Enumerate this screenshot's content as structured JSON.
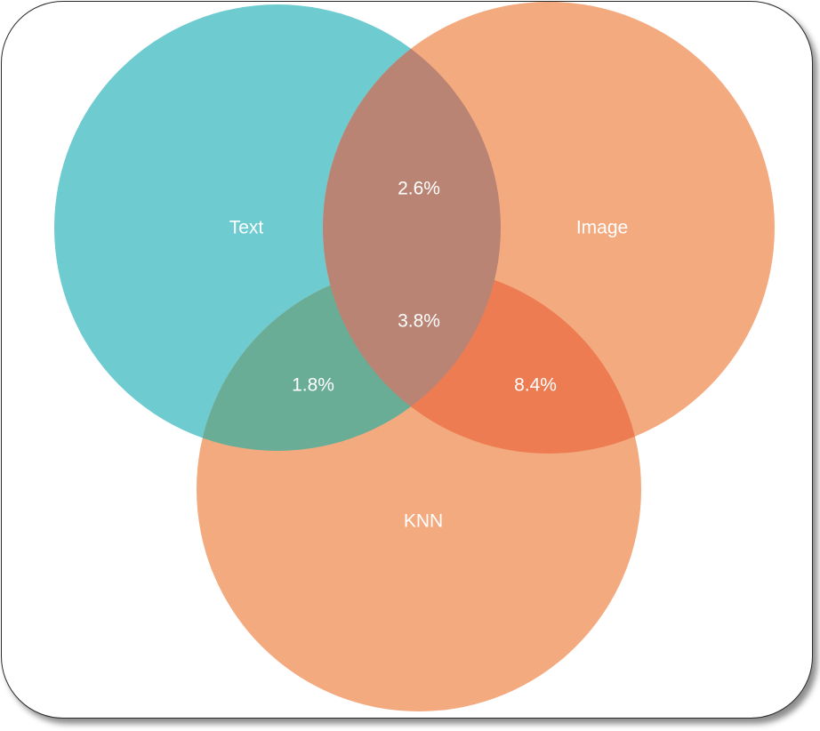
{
  "sets": {
    "text": {
      "label": "Text",
      "color": "#6ecbd0"
    },
    "image": {
      "label": "Image",
      "color": "#f3aa7f"
    },
    "knn": {
      "label": "KNN",
      "color": "#f3aa7f"
    }
  },
  "regions": {
    "text_image": {
      "label": "2.6%",
      "color": "#b98474"
    },
    "text_image_knn": {
      "label": "3.8%",
      "color": "#b98474"
    },
    "text_knn": {
      "label": "1.8%",
      "color": "#6aad97"
    },
    "image_knn": {
      "label": "8.4%",
      "color": "#ee7c53"
    }
  },
  "frame": {
    "background": "#ffffff",
    "border": "#2a2a2a"
  }
}
